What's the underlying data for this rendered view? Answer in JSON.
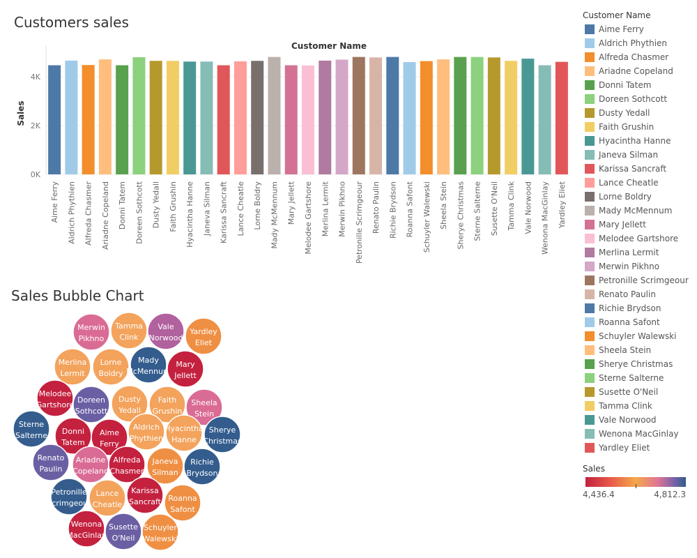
{
  "bar_chart": {
    "title": "Customers sales"
  },
  "bubble_chart": {
    "title": "Sales Bubble Chart"
  },
  "legend": {
    "title": "Customer Name"
  },
  "color_legend": {
    "title": "Sales",
    "min_label": "4,436.4",
    "max_label": "4,812.3"
  },
  "chart_data": [
    {
      "type": "bar",
      "title": "Customers sales",
      "xlabel": "Customer Name",
      "ylabel": "Sales",
      "ylim": [
        0,
        5000
      ],
      "yticks": [
        0,
        2000,
        4000
      ],
      "ytick_labels": [
        "0K",
        "2K",
        "4K"
      ],
      "grid": true,
      "categories": [
        "Aime Ferry",
        "Aldrich Phythien",
        "Alfreda Chasmer",
        "Ariadne Copeland",
        "Donni Tatem",
        "Doreen Sothcott",
        "Dusty Yedall",
        "Faith Grushin",
        "Hyacintha Hanne",
        "Janeva Silman",
        "Karissa Sancraft",
        "Lance Cheatle",
        "Lorne Boldry",
        "Mady McMennum",
        "Mary Jellett",
        "Melodee Gartshore",
        "Merlina Lermit",
        "Merwin Pikhno",
        "Petronille Scrimgeour",
        "Renato Paulin",
        "Richie Brydson",
        "Roanna Safont",
        "Schuyler Walewski",
        "Sheela Stein",
        "Sherye Christmas",
        "Sterne Salterne",
        "Susette O'Neil",
        "Tamma Clink",
        "Vale Norwood",
        "Wenona MacGinlay",
        "Yardley Eliet"
      ],
      "values": [
        4470,
        4660,
        4480,
        4710,
        4470,
        4800,
        4650,
        4650,
        4620,
        4620,
        4470,
        4630,
        4650,
        4810,
        4470,
        4460,
        4660,
        4700,
        4810,
        4790,
        4810,
        4600,
        4640,
        4710,
        4810,
        4810,
        4790,
        4650,
        4740,
        4470,
        4610
      ],
      "colors": [
        "#4e79a7",
        "#a0cbe8",
        "#f28e2b",
        "#ffbe7d",
        "#59a14f",
        "#8cd17d",
        "#b6992d",
        "#f1ce63",
        "#499894",
        "#86bcb6",
        "#e15759",
        "#ff9d9a",
        "#79706e",
        "#bab0ac",
        "#d37295",
        "#fabfd2",
        "#b07aa1",
        "#d4a6c8",
        "#9d7660",
        "#d7b5a6",
        "#4e79a7",
        "#a0cbe8",
        "#f28e2b",
        "#ffbe7d",
        "#59a14f",
        "#8cd17d",
        "#b6992d",
        "#f1ce63",
        "#499894",
        "#86bcb6",
        "#e15759"
      ]
    },
    {
      "type": "scatter",
      "subtype": "packed-bubble",
      "title": "Sales Bubble Chart",
      "color_scale": {
        "min": 4436.4,
        "max": 4812.3,
        "colors": [
          "#c2223f",
          "#e8594a",
          "#f4a84a",
          "#e07595",
          "#7a63a8",
          "#325c8c"
        ]
      },
      "bubbles": [
        {
          "line1": "Merwin",
          "line2": "Pikhno",
          "color": "#da6b94"
        },
        {
          "line1": "Tamma",
          "line2": "Clink",
          "color": "#f3a35c"
        },
        {
          "line1": "Vale",
          "line2": "Norwood",
          "color": "#b0619e"
        },
        {
          "line1": "Yardley",
          "line2": "Eliet",
          "color": "#ef8f43"
        },
        {
          "line1": "Merlina",
          "line2": "Lermit",
          "color": "#f3a35c"
        },
        {
          "line1": "Lorne",
          "line2": "Boldry",
          "color": "#f3a35c"
        },
        {
          "line1": "Mady",
          "line2": "McMennum",
          "color": "#345d8e"
        },
        {
          "line1": "Mary",
          "line2": "Jellett",
          "color": "#c4213f"
        },
        {
          "line1": "Melodee",
          "line2": "Gartshore",
          "color": "#c4213f"
        },
        {
          "line1": "Doreen",
          "line2": "Sothcott",
          "color": "#6b5fa3"
        },
        {
          "line1": "Dusty",
          "line2": "Yedall",
          "color": "#f3a35c"
        },
        {
          "line1": "Faith",
          "line2": "Grushin",
          "color": "#f3a35c"
        },
        {
          "line1": "Sheela",
          "line2": "Stein",
          "color": "#da6b94"
        },
        {
          "line1": "Sterne",
          "line2": "Salterne",
          "color": "#345d8e"
        },
        {
          "line1": "Donni",
          "line2": "Tatem",
          "color": "#c4213f"
        },
        {
          "line1": "Aime",
          "line2": "Ferry",
          "color": "#c4213f"
        },
        {
          "line1": "Aldrich",
          "line2": "Phythien",
          "color": "#f3a35c"
        },
        {
          "line1": "Hyacintha",
          "line2": "Hanne",
          "color": "#f3a35c"
        },
        {
          "line1": "Sherye",
          "line2": "Christmas",
          "color": "#345d8e"
        },
        {
          "line1": "Renato",
          "line2": "Paulin",
          "color": "#6b5fa3"
        },
        {
          "line1": "Ariadne",
          "line2": "Copeland",
          "color": "#da6b94"
        },
        {
          "line1": "Alfreda",
          "line2": "Chasmer",
          "color": "#c4213f"
        },
        {
          "line1": "Janeva",
          "line2": "Silman",
          "color": "#ef8f43"
        },
        {
          "line1": "Richie",
          "line2": "Brydson",
          "color": "#345d8e"
        },
        {
          "line1": "Petronille",
          "line2": "Scrimgeour",
          "color": "#345d8e"
        },
        {
          "line1": "Lance",
          "line2": "Cheatle",
          "color": "#f3a35c"
        },
        {
          "line1": "Karissa",
          "line2": "Sancraft",
          "color": "#c4213f"
        },
        {
          "line1": "Roanna",
          "line2": "Safont",
          "color": "#ef8f43"
        },
        {
          "line1": "Wenona",
          "line2": "MacGinlay",
          "color": "#c4213f"
        },
        {
          "line1": "Susette",
          "line2": "O'Neil",
          "color": "#6b5fa3"
        },
        {
          "line1": "Schuyler",
          "line2": "Walewski",
          "color": "#ef8f43"
        }
      ]
    }
  ]
}
